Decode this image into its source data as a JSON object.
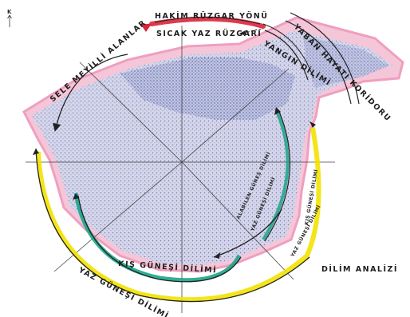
{
  "north": {
    "label": "K"
  },
  "labels": {
    "harim_ruzgar_yonu": "HAKİM RÜZGAR YÖNÜ",
    "sicak_yaz_ruzgari": "SICAK YAZ RÜZGARI",
    "yangin_dilimi": "YANGIN DİLİMİ",
    "yaban_hayat_koridoru": "YABAN HAYATI KORİDORU",
    "sele_meyilli_alanlar": "SELE MEYİLLİ ALANLAR",
    "kis_gunesi_dilimi": "KIŞ GÜNEŞİ DİLİMİ",
    "yaz_gunesi_dilimi": "YAZ GÜNEŞİ DİLİMİ",
    "yaz_gunesi_dilimi_right": "YAZ GÜNEŞİ DİLİMİ",
    "kis_gunesi_dilimi_right": "KIŞ GÜNEŞİ DİLİMİ",
    "alasan_gerilim": "ALABİLEN GÜNEŞ DİLİMİ",
    "tarla_meyve": "YAZ GÜNEŞİ DİLİMİ",
    "dilim_analizi": "DİLİM ANALİZİ"
  },
  "colors": {
    "site_pink": "#f2b8d0",
    "site_fill": "#c9cde6",
    "site_dots": "#7c86b8",
    "wind_red": "#d9253a",
    "yellow": "#f2e200",
    "teal": "#1aa58a",
    "dark": "#222222",
    "line": "#3a3a3a"
  }
}
